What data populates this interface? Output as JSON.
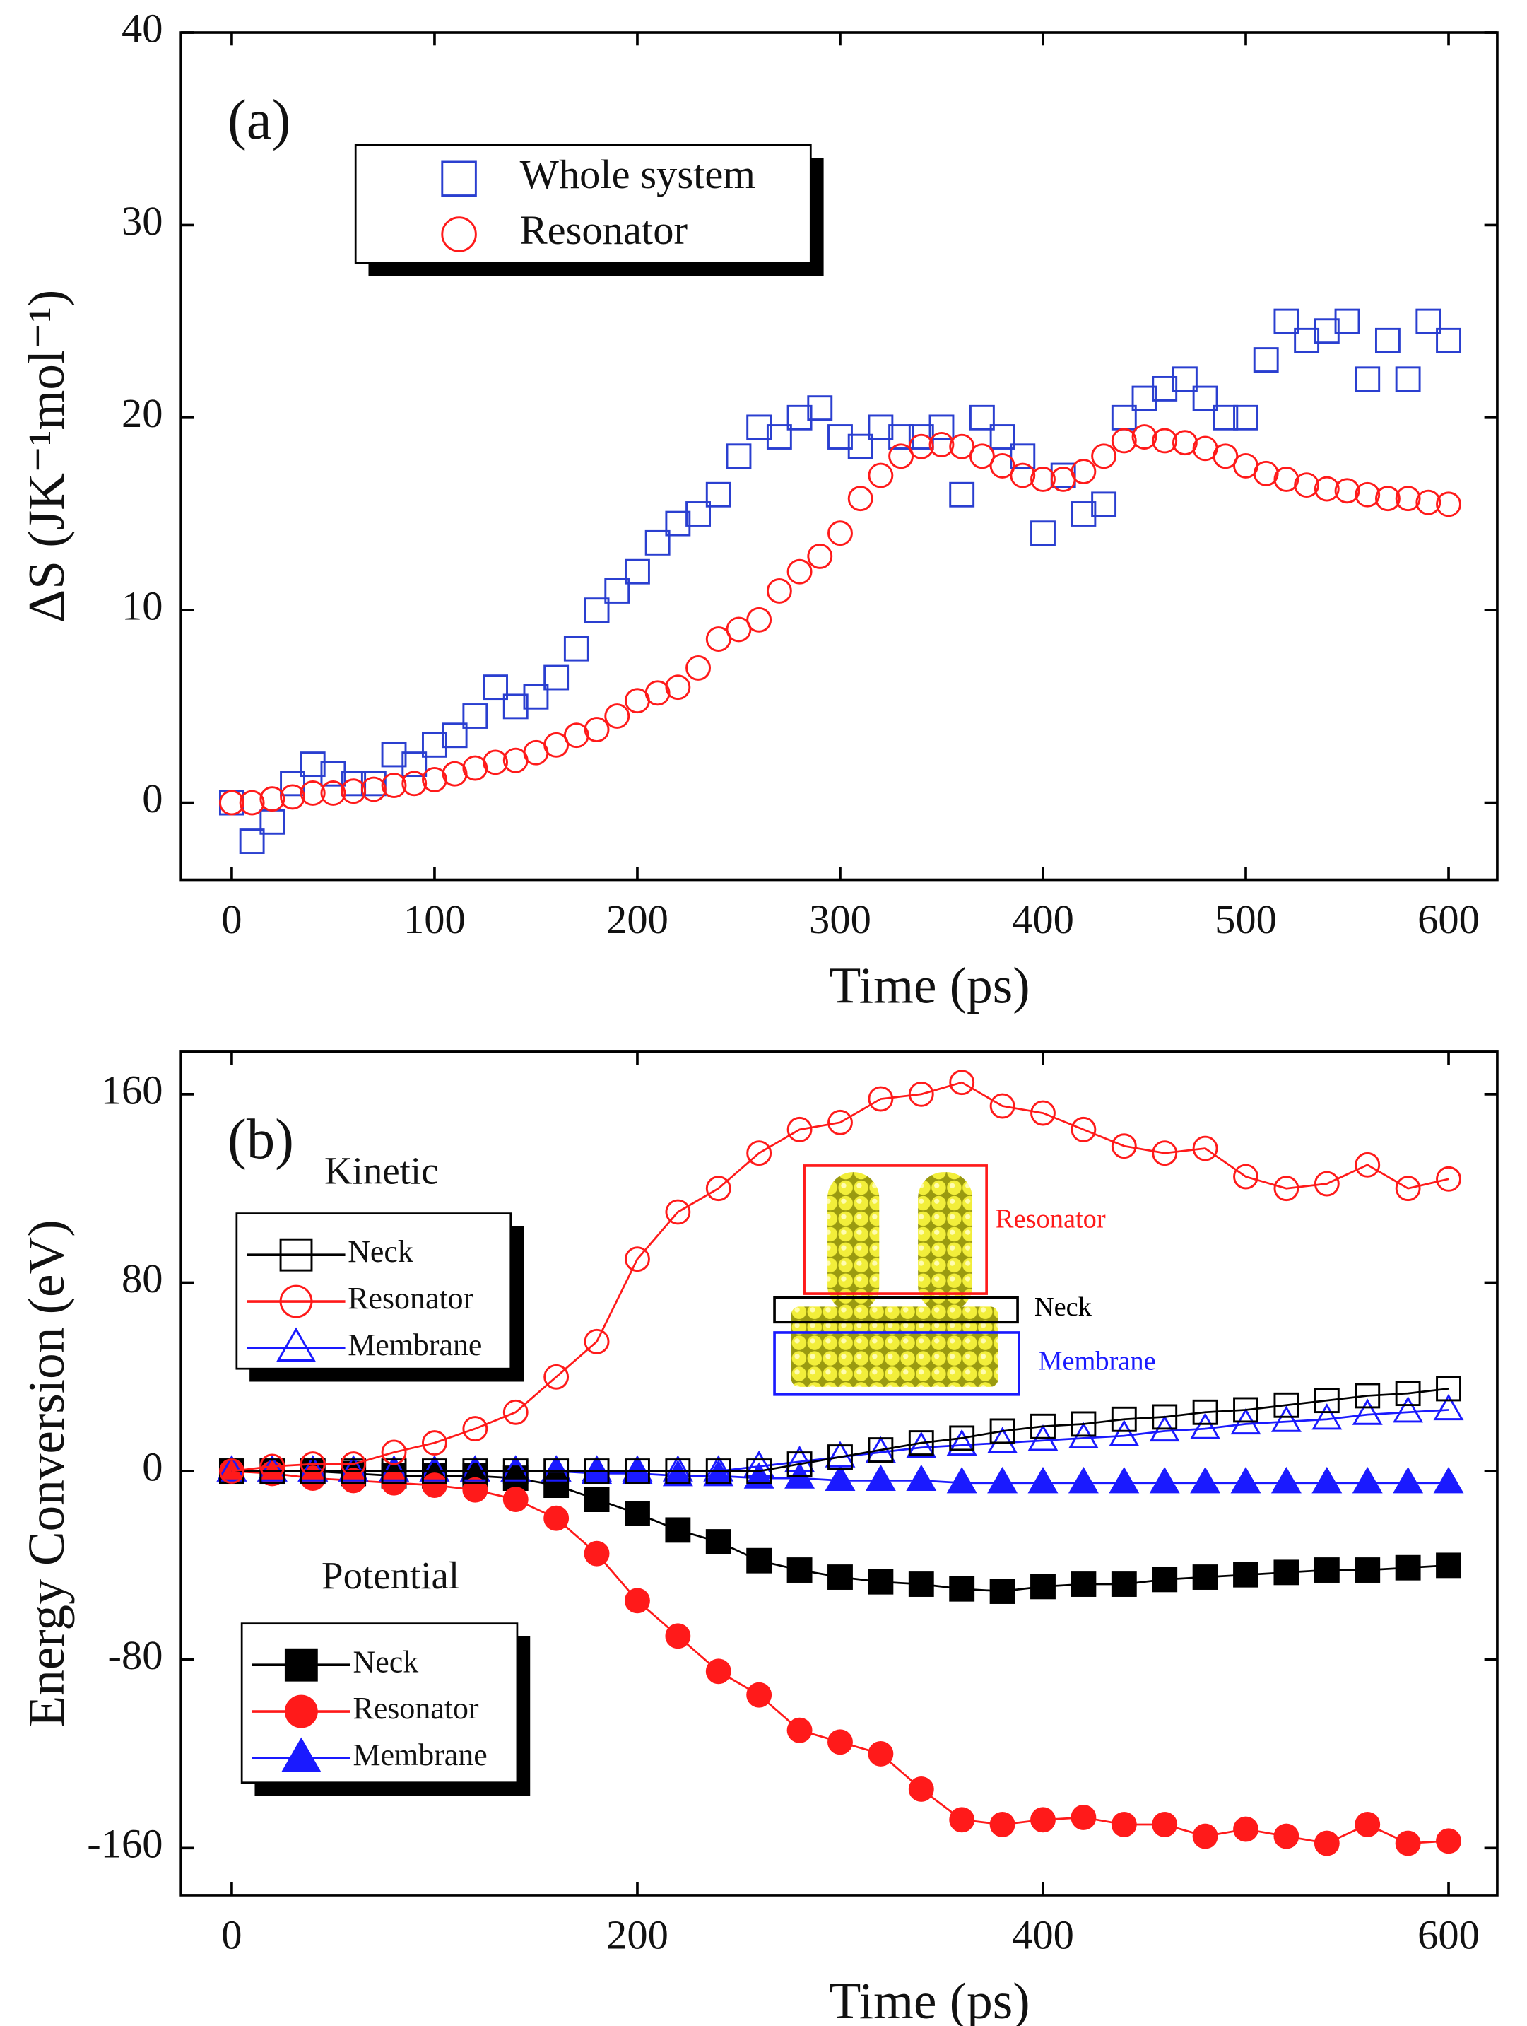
{
  "chart_data": [
    {
      "type": "scatter",
      "label": "(a)",
      "xlabel": "Time (ps)",
      "ylabel": "ΔS (JK⁻¹mol⁻¹)",
      "xlim": [
        -25,
        624
      ],
      "ylim": [
        -4,
        40
      ],
      "xticks": [
        0,
        100,
        200,
        300,
        400,
        500,
        600
      ],
      "yticks": [
        0,
        10,
        20,
        30,
        40
      ],
      "x": [
        0,
        10,
        20,
        30,
        40,
        50,
        60,
        70,
        80,
        90,
        100,
        110,
        120,
        130,
        140,
        150,
        160,
        170,
        180,
        190,
        200,
        210,
        220,
        230,
        240,
        250,
        260,
        270,
        280,
        290,
        300,
        310,
        320,
        330,
        340,
        350,
        360,
        370,
        380,
        390,
        400,
        410,
        420,
        430,
        440,
        450,
        460,
        470,
        480,
        490,
        500,
        510,
        520,
        530,
        540,
        550,
        560,
        570,
        580,
        590,
        600
      ],
      "series": [
        {
          "name": "Whole system",
          "color": "#2a3fd0",
          "marker": "square",
          "filled": false,
          "values": [
            0,
            -2,
            -1,
            1,
            2,
            1.5,
            1,
            1,
            2.5,
            2,
            3,
            3.5,
            4.5,
            6,
            5,
            5.5,
            6.5,
            8,
            10,
            11,
            12,
            13.5,
            14.5,
            15,
            16,
            18,
            19.5,
            19,
            20,
            20.5,
            19,
            18.5,
            19.5,
            19,
            19,
            19.5,
            16,
            20,
            19,
            18,
            14,
            17,
            15,
            15.5,
            20,
            21,
            21.5,
            22,
            21,
            20,
            20,
            23,
            25,
            24,
            24.5,
            25,
            22,
            24,
            22,
            25,
            24
          ]
        },
        {
          "name": "Resonator",
          "color": "#ff1a1a",
          "marker": "circle",
          "filled": false,
          "values": [
            0,
            0,
            0.2,
            0.3,
            0.5,
            0.5,
            0.6,
            0.7,
            0.9,
            1,
            1.2,
            1.5,
            1.8,
            2.1,
            2.2,
            2.6,
            3,
            3.5,
            3.8,
            4.5,
            5.3,
            5.7,
            6,
            7,
            8.5,
            9,
            9.5,
            11,
            12,
            12.8,
            14,
            15.8,
            17,
            18,
            18.5,
            18.6,
            18.5,
            18,
            17.5,
            17,
            16.8,
            16.8,
            17.2,
            18,
            18.8,
            19,
            18.8,
            18.7,
            18.4,
            18,
            17.5,
            17.1,
            16.8,
            16.5,
            16.3,
            16.2,
            16,
            15.8,
            15.8,
            15.6,
            15.5
          ]
        }
      ]
    },
    {
      "type": "line",
      "label": "(b)",
      "xlabel": "Time (ps)",
      "ylabel": "Energy Conversion (eV)",
      "xlim": [
        -25,
        624
      ],
      "ylim": [
        -180,
        178
      ],
      "xticks": [
        0,
        200,
        400,
        600
      ],
      "yticks": [
        -160,
        -80,
        0,
        80,
        160
      ],
      "x": [
        0,
        20,
        40,
        60,
        80,
        100,
        120,
        140,
        160,
        180,
        200,
        220,
        240,
        260,
        280,
        300,
        320,
        340,
        360,
        380,
        400,
        420,
        440,
        460,
        480,
        500,
        520,
        540,
        560,
        580,
        600
      ],
      "inset_labels": [
        "Resonator",
        "Neck",
        "Membrane"
      ],
      "groups": [
        {
          "name": "Kinetic",
          "series": [
            {
              "name": "Neck",
              "color": "#000000",
              "marker": "square",
              "filled": false,
              "values": [
                0,
                0,
                0,
                0,
                0,
                0,
                0,
                0,
                0,
                0,
                0,
                0,
                0,
                0,
                3,
                6,
                9,
                12,
                14,
                17,
                19,
                20,
                22,
                23,
                25,
                26,
                28,
                30,
                32,
                33,
                35
              ]
            },
            {
              "name": "Resonator",
              "color": "#ff1a1a",
              "marker": "circle",
              "filled": false,
              "values": [
                0,
                2,
                3,
                3,
                8,
                12,
                18,
                25,
                40,
                55,
                90,
                110,
                120,
                135,
                145,
                148,
                158,
                160,
                165,
                155,
                152,
                145,
                138,
                135,
                137,
                125,
                120,
                122,
                130,
                120,
                124
              ]
            },
            {
              "name": "Membrane",
              "color": "#1a1aff",
              "marker": "triangle",
              "filled": false,
              "values": [
                0,
                0,
                0,
                0,
                0,
                0,
                0,
                0,
                0,
                0,
                0,
                0,
                0,
                2,
                4,
                6,
                8,
                10,
                11,
                12,
                13,
                14,
                15,
                17,
                18,
                20,
                21,
                22,
                24,
                25,
                26
              ]
            }
          ]
        },
        {
          "name": "Potential",
          "series": [
            {
              "name": "Neck",
              "color": "#000000",
              "marker": "square",
              "filled": true,
              "values": [
                0,
                0,
                0,
                -1,
                -2,
                -2,
                -2,
                -3,
                -6,
                -12,
                -18,
                -25,
                -30,
                -38,
                -42,
                -45,
                -47,
                -48,
                -50,
                -51,
                -49,
                -48,
                -48,
                -46,
                -45,
                -44,
                -43,
                -42,
                -42,
                -41,
                -40
              ]
            },
            {
              "name": "Resonator",
              "color": "#ff1a1a",
              "marker": "circle",
              "filled": true,
              "values": [
                0,
                -1,
                -3,
                -4,
                -5,
                -6,
                -8,
                -12,
                -20,
                -35,
                -55,
                -70,
                -85,
                -95,
                -110,
                -115,
                -120,
                -135,
                -148,
                -150,
                -148,
                -147,
                -150,
                -150,
                -155,
                -152,
                -155,
                -158,
                -150,
                -158,
                -157
              ]
            },
            {
              "name": "Membrane",
              "color": "#1a1aff",
              "marker": "triangle",
              "filled": true,
              "values": [
                0,
                0,
                0,
                0,
                0,
                0,
                0,
                0,
                0,
                -1,
                -1,
                -2,
                -2,
                -3,
                -3,
                -4,
                -4,
                -4,
                -5,
                -5,
                -5,
                -5,
                -5,
                -5,
                -5,
                -5,
                -5,
                -5,
                -5,
                -5,
                -5
              ]
            }
          ]
        }
      ]
    }
  ]
}
